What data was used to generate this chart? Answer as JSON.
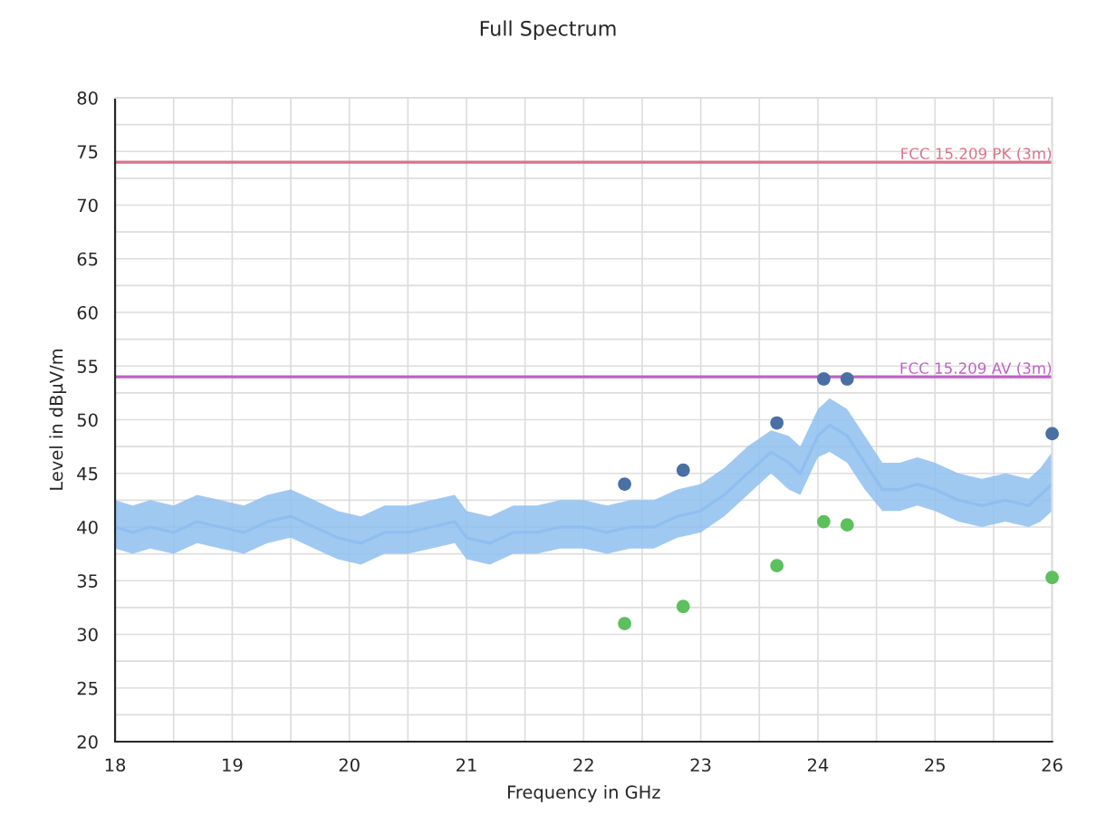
{
  "chart_data": {
    "type": "line",
    "title": "Full Spectrum",
    "xlabel": "Frequency in GHz",
    "ylabel": "Level in dBµV/m",
    "xlim": [
      18,
      26
    ],
    "xticks": [
      18,
      19,
      20,
      21,
      22,
      23,
      24,
      25,
      26
    ],
    "ylim": [
      20,
      80
    ],
    "yticks": [
      20,
      25,
      30,
      35,
      40,
      45,
      50,
      55,
      60,
      65,
      70,
      75,
      80
    ],
    "grid": true,
    "legend": false,
    "series": [
      {
        "color": "#8fbff0",
        "x": [
          18.0,
          18.15,
          18.3,
          18.5,
          18.7,
          18.9,
          19.1,
          19.3,
          19.5,
          19.7,
          19.9,
          20.1,
          20.3,
          20.5,
          20.7,
          20.9,
          21.0,
          21.2,
          21.4,
          21.6,
          21.8,
          22.0,
          22.2,
          22.4,
          22.6,
          22.8,
          23.0,
          23.2,
          23.4,
          23.6,
          23.75,
          23.85,
          24.0,
          24.1,
          24.25,
          24.4,
          24.55,
          24.7,
          24.85,
          25.0,
          25.2,
          25.4,
          25.6,
          25.8,
          25.9,
          26.0
        ],
        "values": [
          40,
          39.5,
          40,
          39.5,
          40.5,
          40,
          39.5,
          40.5,
          41,
          40,
          39,
          38.5,
          39.5,
          39.5,
          40,
          40.5,
          39,
          38.5,
          39.5,
          39.5,
          40,
          40,
          39.5,
          40,
          40,
          41,
          41.5,
          43,
          45,
          47,
          46,
          45,
          48.5,
          49.5,
          48.5,
          46,
          43.5,
          43.5,
          44,
          43.5,
          42.5,
          42,
          42.5,
          42,
          43,
          44
        ],
        "lower": [
          38,
          37.5,
          38,
          37.5,
          38.5,
          38,
          37.5,
          38.5,
          39,
          38,
          37,
          36.5,
          37.5,
          37.5,
          38,
          38.5,
          37,
          36.5,
          37.5,
          37.5,
          38,
          38,
          37.5,
          38,
          38,
          39,
          39.5,
          41,
          43,
          45,
          43.5,
          43,
          46.5,
          47,
          46,
          43.5,
          41.5,
          41.5,
          42,
          41.5,
          40.5,
          40,
          40.5,
          40,
          40.5,
          41.5
        ],
        "upper": [
          42.5,
          42,
          42.5,
          42,
          43,
          42.5,
          42,
          43,
          43.5,
          42.5,
          41.5,
          41,
          42,
          42,
          42.5,
          43,
          41.5,
          41,
          42,
          42,
          42.5,
          42.5,
          42,
          42.5,
          42.5,
          43.5,
          44,
          45.5,
          47.5,
          49,
          48.5,
          47.5,
          51,
          52,
          51,
          48.5,
          46,
          46,
          46.5,
          46,
          45,
          44.5,
          45,
          44.5,
          45.5,
          47
        ]
      },
      {
        "type": "scatter",
        "color": "#4a6fa5",
        "marker": "circle",
        "x": [
          22.35,
          22.85,
          23.65,
          24.05,
          24.25,
          26.0
        ],
        "values": [
          44,
          45.3,
          49.7,
          53.8,
          53.8,
          48.7
        ]
      },
      {
        "type": "scatter",
        "color": "#5cc05c",
        "marker": "circle",
        "x": [
          22.35,
          22.85,
          23.65,
          24.05,
          24.25,
          26.0
        ],
        "values": [
          31,
          32.6,
          36.4,
          40.5,
          40.2,
          35.3
        ]
      }
    ],
    "ref_lines": [
      {
        "axis": "y",
        "value": 74,
        "label": "FCC 15.209 PK (3m)",
        "color": "#d9738a",
        "line_style": "solid"
      },
      {
        "axis": "y",
        "value": 54,
        "label": "FCC 15.209 AV (3m)",
        "color": "#c060c8",
        "line_style": "solid"
      }
    ]
  }
}
